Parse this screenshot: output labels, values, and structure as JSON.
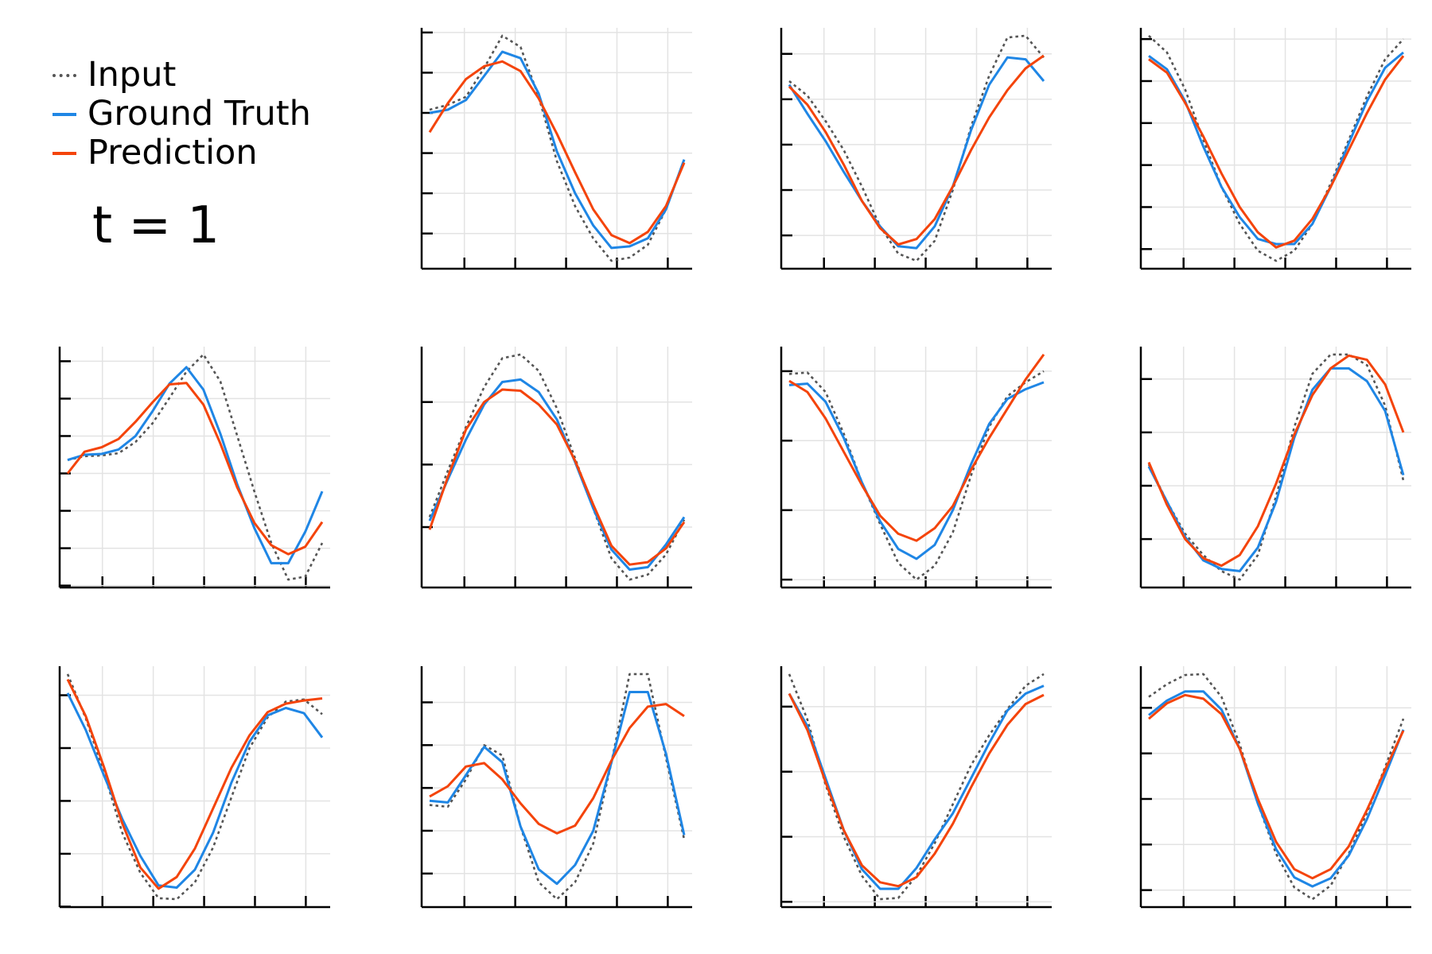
{
  "legend": {
    "input_label": "Input",
    "truth_label": "Ground Truth",
    "pred_label": "Prediction"
  },
  "time_label": "t = 1",
  "colors": {
    "input": "#555555",
    "truth": "#1f86e5",
    "pred": "#f4440b"
  },
  "chart_data": {
    "type": "line",
    "grid": true,
    "tick_labels": "none",
    "series_names": [
      "Input",
      "Ground Truth",
      "Prediction"
    ],
    "panels": [
      {
        "input": [
          0.52,
          0.55,
          0.6,
          0.78,
          0.98,
          0.91,
          0.6,
          0.2,
          -0.08,
          -0.28,
          -0.42,
          -0.4,
          -0.32,
          -0.1,
          0.21
        ],
        "truth": [
          0.5,
          0.52,
          0.58,
          0.73,
          0.88,
          0.84,
          0.62,
          0.26,
          0.0,
          -0.2,
          -0.34,
          -0.33,
          -0.28,
          -0.1,
          0.21
        ],
        "pred": [
          0.38,
          0.56,
          0.71,
          0.79,
          0.82,
          0.76,
          0.59,
          0.37,
          0.13,
          -0.1,
          -0.26,
          -0.31,
          -0.24,
          -0.08,
          0.19
        ]
      },
      {
        "input": [
          0.6,
          0.52,
          0.38,
          0.22,
          0.02,
          -0.2,
          -0.35,
          -0.39,
          -0.28,
          0.0,
          0.35,
          0.63,
          0.84,
          0.85,
          0.73
        ],
        "truth": [
          0.58,
          0.42,
          0.27,
          0.1,
          -0.06,
          -0.2,
          -0.31,
          -0.32,
          -0.2,
          0.02,
          0.33,
          0.58,
          0.73,
          0.72,
          0.6
        ],
        "pred": [
          0.57,
          0.47,
          0.32,
          0.14,
          -0.06,
          -0.21,
          -0.3,
          -0.27,
          -0.16,
          0.02,
          0.22,
          0.4,
          0.55,
          0.67,
          0.74
        ]
      },
      {
        "input": [
          1.02,
          0.92,
          0.7,
          0.4,
          0.12,
          -0.1,
          -0.26,
          -0.32,
          -0.26,
          -0.1,
          0.14,
          0.4,
          0.66,
          0.88,
          1.0
        ],
        "truth": [
          0.9,
          0.82,
          0.63,
          0.36,
          0.12,
          -0.06,
          -0.19,
          -0.22,
          -0.22,
          -0.1,
          0.12,
          0.38,
          0.63,
          0.83,
          0.92
        ],
        "pred": [
          0.88,
          0.8,
          0.62,
          0.42,
          0.2,
          0.0,
          -0.15,
          -0.24,
          -0.2,
          -0.07,
          0.12,
          0.34,
          0.56,
          0.76,
          0.9
        ]
      },
      {
        "input": [
          0.68,
          0.73,
          0.74,
          0.77,
          0.92,
          1.17,
          1.51,
          1.86,
          2.09,
          1.73,
          1.0,
          0.26,
          -0.43,
          -0.92,
          -0.88,
          -0.43
        ],
        "truth": [
          0.68,
          0.75,
          0.76,
          0.82,
          1.0,
          1.33,
          1.7,
          1.92,
          1.62,
          1.03,
          0.35,
          -0.23,
          -0.7,
          -0.7,
          -0.28,
          0.26
        ],
        "pred": [
          0.5,
          0.79,
          0.85,
          0.96,
          1.19,
          1.45,
          1.69,
          1.71,
          1.42,
          0.9,
          0.31,
          -0.16,
          -0.46,
          -0.58,
          -0.48,
          -0.15
        ]
      },
      {
        "input": [
          0.08,
          0.45,
          0.8,
          1.12,
          1.35,
          1.38,
          1.25,
          0.95,
          0.55,
          0.15,
          -0.25,
          -0.42,
          -0.38,
          -0.22,
          0.06
        ],
        "truth": [
          0.05,
          0.38,
          0.7,
          0.98,
          1.16,
          1.18,
          1.08,
          0.86,
          0.52,
          0.15,
          -0.18,
          -0.34,
          -0.32,
          -0.14,
          0.08
        ],
        "pred": [
          -0.02,
          0.4,
          0.78,
          1.0,
          1.1,
          1.09,
          0.98,
          0.82,
          0.53,
          0.18,
          -0.15,
          -0.3,
          -0.28,
          -0.17,
          0.04
        ]
      },
      {
        "input": [
          0.98,
          0.99,
          0.85,
          0.55,
          0.2,
          -0.1,
          -0.38,
          -0.5,
          -0.4,
          -0.16,
          0.25,
          0.6,
          0.82,
          0.92,
          1.0
        ],
        "truth": [
          0.9,
          0.91,
          0.78,
          0.52,
          0.2,
          -0.08,
          -0.28,
          -0.35,
          -0.25,
          0.0,
          0.33,
          0.62,
          0.8,
          0.87,
          0.92
        ],
        "pred": [
          0.93,
          0.85,
          0.66,
          0.42,
          0.18,
          -0.04,
          -0.17,
          -0.22,
          -0.13,
          0.03,
          0.29,
          0.52,
          0.73,
          0.94,
          1.12
        ]
      },
      {
        "input": [
          0.7,
          0.35,
          0.05,
          -0.15,
          -0.3,
          -0.38,
          -0.15,
          0.4,
          1.05,
          1.55,
          1.73,
          1.73,
          1.63,
          1.25,
          0.55
        ],
        "truth": [
          0.68,
          0.35,
          0.02,
          -0.2,
          -0.28,
          -0.3,
          -0.08,
          0.35,
          0.95,
          1.4,
          1.6,
          1.6,
          1.48,
          1.2,
          0.6
        ],
        "pred": [
          0.72,
          0.32,
          0.0,
          -0.18,
          -0.25,
          -0.15,
          0.12,
          0.52,
          0.98,
          1.35,
          1.6,
          1.72,
          1.68,
          1.45,
          1.0
        ]
      },
      {
        "input": [
          0.7,
          0.28,
          -0.23,
          -0.8,
          -1.18,
          -1.42,
          -1.43,
          -1.27,
          -0.94,
          -0.47,
          0.0,
          0.29,
          0.44,
          0.46,
          0.32
        ],
        "truth": [
          0.52,
          0.17,
          -0.26,
          -0.67,
          -1.02,
          -1.3,
          -1.32,
          -1.15,
          -0.8,
          -0.33,
          0.06,
          0.31,
          0.38,
          0.33,
          0.1
        ],
        "pred": [
          0.65,
          0.3,
          -0.18,
          -0.71,
          -1.13,
          -1.33,
          -1.22,
          -0.95,
          -0.57,
          -0.19,
          0.12,
          0.34,
          0.42,
          0.45,
          0.47
        ]
      },
      {
        "input": [
          0.3,
          0.28,
          0.6,
          1.0,
          0.88,
          0.05,
          -0.6,
          -0.8,
          -0.6,
          -0.15,
          0.8,
          1.83,
          1.83,
          0.85,
          -0.1
        ],
        "truth": [
          0.35,
          0.33,
          0.65,
          0.98,
          0.8,
          0.05,
          -0.45,
          -0.62,
          -0.4,
          0.0,
          0.8,
          1.62,
          1.62,
          0.9,
          -0.05
        ],
        "pred": [
          0.4,
          0.52,
          0.75,
          0.79,
          0.6,
          0.32,
          0.08,
          -0.03,
          0.06,
          0.38,
          0.82,
          1.2,
          1.45,
          1.48,
          1.34
        ]
      },
      {
        "input": [
          0.75,
          0.4,
          -0.1,
          -0.5,
          -0.8,
          -0.98,
          -0.97,
          -0.8,
          -0.55,
          -0.25,
          0.05,
          0.28,
          0.48,
          0.66,
          0.75
        ],
        "truth": [
          0.6,
          0.35,
          -0.05,
          -0.45,
          -0.75,
          -0.9,
          -0.9,
          -0.74,
          -0.52,
          -0.32,
          -0.05,
          0.22,
          0.47,
          0.6,
          0.66
        ],
        "pred": [
          0.6,
          0.32,
          -0.08,
          -0.45,
          -0.72,
          -0.85,
          -0.88,
          -0.81,
          -0.63,
          -0.4,
          -0.12,
          0.14,
          0.36,
          0.52,
          0.59
        ]
      },
      {
        "input": [
          0.62,
          0.76,
          0.86,
          0.87,
          0.62,
          0.1,
          -0.55,
          -1.1,
          -1.47,
          -1.6,
          -1.45,
          -1.1,
          -0.65,
          -0.15,
          0.38
        ],
        "truth": [
          0.42,
          0.58,
          0.68,
          0.68,
          0.48,
          0.05,
          -0.55,
          -1.05,
          -1.36,
          -1.46,
          -1.37,
          -1.12,
          -0.72,
          -0.24,
          0.26
        ],
        "pred": [
          0.38,
          0.55,
          0.64,
          0.6,
          0.43,
          0.05,
          -0.5,
          -0.97,
          -1.27,
          -1.37,
          -1.27,
          -1.02,
          -0.62,
          -0.18,
          0.25
        ]
      }
    ]
  }
}
